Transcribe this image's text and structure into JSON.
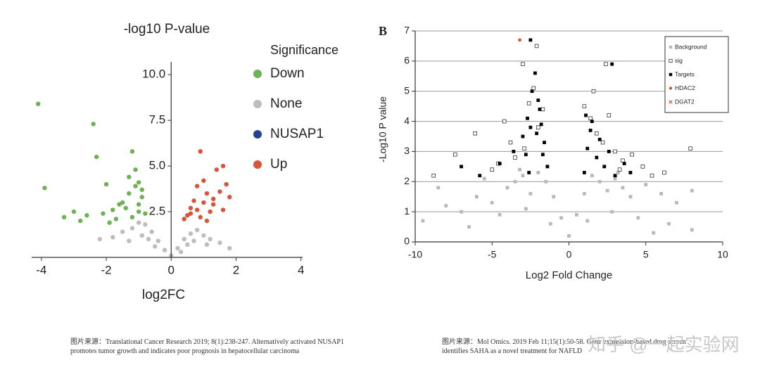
{
  "chart_data": [
    {
      "type": "scatter",
      "title": "-log10 P-value",
      "x_label": "log2FC",
      "xlim": [
        -4.3,
        4.05
      ],
      "ylim": [
        0,
        10.7
      ],
      "xticks": [
        -4,
        -2,
        0,
        2,
        4
      ],
      "yticks": [
        2.5,
        {
          "value": 5,
          "label": "5.0"
        },
        7.5,
        {
          "value": 10,
          "label": "10.0"
        }
      ],
      "legend": "right",
      "legend_title": "Significance",
      "grid": false,
      "series": [
        {
          "name": "Down",
          "color": "#6cb153",
          "marker": "circle",
          "x": [
            -4.1,
            -3.9,
            -2.4,
            -2.3,
            -2.0,
            -1.2,
            -1.1,
            -1.0,
            -0.9,
            -1.3,
            -1.5,
            -1.6,
            -1.8,
            -2.1,
            -2.6,
            -3.0,
            -3.3,
            -1.4,
            -1.0,
            -1.2,
            -0.8,
            -0.9,
            -1.1,
            -1.7,
            -2.8,
            -1.3,
            -1.0,
            -1.9
          ],
          "y": [
            8.4,
            3.8,
            7.3,
            5.5,
            4.0,
            5.8,
            4.8,
            4.1,
            3.3,
            3.5,
            3.0,
            2.9,
            2.6,
            2.4,
            2.3,
            2.5,
            2.2,
            2.7,
            2.9,
            2.2,
            2.4,
            3.7,
            3.9,
            2.1,
            2.0,
            4.4,
            2.5,
            1.9
          ]
        },
        {
          "name": "None",
          "color": "#bdbdbd",
          "marker": "circle",
          "x": [
            -1.8,
            -1.5,
            -1.2,
            -1.0,
            -0.8,
            -0.6,
            -0.4,
            -0.2,
            0,
            0.2,
            0.4,
            0.6,
            0.8,
            1.0,
            1.2,
            1.5,
            -2.2,
            -1.3,
            -0.9,
            -0.5,
            0.3,
            0.7,
            1.1,
            1.8,
            -0.7,
            0.5
          ],
          "y": [
            1.1,
            1.4,
            1.6,
            1.9,
            1.8,
            1.4,
            0.9,
            0.4,
            0.1,
            0.5,
            1.0,
            1.3,
            1.5,
            1.2,
            1.0,
            0.8,
            1.0,
            0.9,
            1.2,
            0.6,
            0.3,
            0.9,
            0.7,
            0.5,
            1.0,
            0.7
          ]
        },
        {
          "name": "NUSAP1",
          "color": "#24458a",
          "marker": "circle",
          "x": [],
          "y": []
        },
        {
          "name": "Up",
          "color": "#d9533a",
          "marker": "circle",
          "x": [
            0.9,
            1.4,
            1.6,
            1.7,
            1.3,
            1.1,
            1.0,
            0.8,
            0.6,
            0.5,
            0.7,
            1.2,
            1.5,
            0.9,
            1.0,
            0.4,
            0.6,
            1.3,
            1.6,
            1.8,
            0.8,
            1.1
          ],
          "y": [
            5.8,
            4.8,
            5.0,
            4.0,
            3.2,
            3.5,
            3.0,
            2.6,
            2.7,
            2.3,
            3.1,
            2.5,
            3.6,
            2.2,
            4.2,
            2.1,
            2.4,
            2.9,
            2.6,
            3.3,
            3.9,
            2.0
          ]
        }
      ],
      "caption": "图片来源：Translational Cancer Research 2019; 8(1):238-247. Alternatively activated NUSAP1 promotes tumor growth and indicates poor prognosis in hepatocellular carcinoma"
    },
    {
      "type": "scatter",
      "panel_label": "B",
      "x_label": "Log2 Fold Change",
      "y_label": "-Log10 P value",
      "xlim": [
        -10,
        10
      ],
      "ylim": [
        0,
        7
      ],
      "xticks": [
        -10,
        -5,
        0,
        5,
        10
      ],
      "yticks": [
        0,
        1,
        2,
        3,
        4,
        5,
        6,
        7
      ],
      "legend": "upper right",
      "grid": true,
      "series": [
        {
          "name": "Background",
          "color": "#b8b8b8",
          "marker": "square",
          "x": [
            -9.5,
            -8,
            -7,
            -6,
            -5,
            -4,
            -3.5,
            -3,
            -2.5,
            -2,
            -1.5,
            -1,
            -0.5,
            0,
            0.5,
            1,
            1.5,
            2,
            2.5,
            3,
            3.5,
            4,
            5,
            6,
            7,
            8,
            -6.5,
            -4.5,
            -2.8,
            -1.2,
            1.2,
            2.8,
            4.5,
            6.5,
            -8.5,
            8,
            5.5,
            -5.5,
            -3.2,
            3.2
          ],
          "y": [
            0.7,
            1.2,
            1.0,
            1.5,
            1.3,
            1.8,
            2.0,
            2.2,
            1.6,
            2.3,
            2.0,
            1.5,
            0.8,
            0.2,
            0.9,
            1.6,
            2.2,
            2.0,
            1.7,
            2.1,
            1.8,
            1.5,
            1.9,
            1.6,
            1.3,
            1.7,
            0.5,
            0.9,
            1.1,
            0.6,
            0.7,
            1.0,
            0.8,
            0.6,
            1.8,
            0.4,
            0.3,
            2.1,
            2.4,
            2.3
          ]
        },
        {
          "name": "sig",
          "color": "#333333",
          "marker": "open-square",
          "x": [
            -8.8,
            -7.4,
            -6.1,
            -5.0,
            -4.2,
            -3.8,
            -3.0,
            -2.6,
            -2.3,
            -2.0,
            -1.7,
            -3.5,
            -4.6,
            -2.9,
            1.0,
            1.4,
            1.8,
            2.2,
            2.6,
            3.0,
            3.5,
            4.1,
            4.8,
            5.4,
            6.2,
            7.9,
            2.4,
            3.3,
            -2.1,
            1.6
          ],
          "y": [
            2.2,
            2.9,
            3.6,
            2.4,
            4.0,
            3.3,
            5.9,
            4.6,
            5.1,
            3.8,
            4.4,
            2.8,
            2.6,
            3.1,
            4.5,
            4.1,
            3.6,
            3.3,
            4.2,
            3.0,
            2.7,
            2.9,
            2.5,
            2.2,
            2.3,
            3.1,
            5.9,
            2.4,
            6.5,
            5.0
          ]
        },
        {
          "name": "Targets",
          "color": "#000000",
          "marker": "square",
          "x": [
            -7.0,
            -5.8,
            -4.5,
            -3.6,
            -3.0,
            -2.7,
            -2.4,
            -2.2,
            -2.0,
            -1.8,
            -1.6,
            -1.4,
            -2.8,
            -2.5,
            -1.9,
            -2.1,
            -2.6,
            1.0,
            1.2,
            1.5,
            1.8,
            2.0,
            2.3,
            2.6,
            3.0,
            3.6,
            4.0,
            1.1,
            1.4,
            2.8,
            -2.5,
            -1.7
          ],
          "y": [
            2.5,
            2.2,
            2.6,
            3.0,
            3.5,
            4.1,
            5.0,
            5.6,
            4.7,
            3.9,
            3.3,
            2.5,
            2.9,
            6.7,
            4.4,
            3.6,
            2.3,
            2.3,
            3.1,
            4.0,
            2.8,
            3.4,
            2.5,
            3.0,
            2.2,
            2.6,
            2.3,
            4.2,
            3.7,
            5.9,
            3.8,
            2.9
          ]
        },
        {
          "name": "HDAC2",
          "color": "#d9533a",
          "marker": "circle",
          "x": [
            -3.2
          ],
          "y": [
            6.7
          ]
        },
        {
          "name": "DGAT2",
          "color": "#d9533a",
          "marker": "x",
          "x": [],
          "y": []
        }
      ],
      "caption": "图片来源：Mol Omics. 2019 Feb 11;15(1):50-58. Gene expression-based drug screen identifies SAHA as a novel treatment for NAFLD"
    }
  ],
  "watermark": "知乎 @一起实验网"
}
